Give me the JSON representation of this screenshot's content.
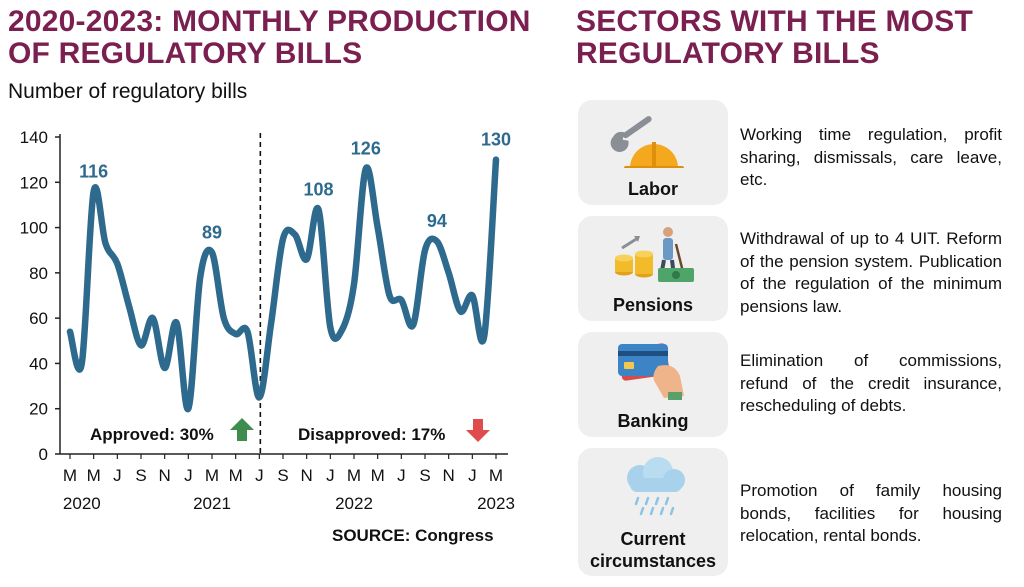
{
  "left_title": "2020-2023: MONTHLY PRODUCTION OF REGULATORY BILLS",
  "right_title": "SECTORS WITH THE MOST REGULATORY BILLS",
  "source": "SOURCE: Congress",
  "colors": {
    "title": "#7a1f4f",
    "line": "#2e6a8e",
    "label": "#2e6a8e",
    "up_arrow": "#3e8c4e",
    "down_arrow": "#e04b4b",
    "card_bg": "#efefef"
  },
  "chart_data": {
    "type": "line",
    "title": "",
    "ylabel": "Number of regulatory bills",
    "xlabel": "",
    "ylim": [
      0,
      140
    ],
    "yticks": [
      0,
      20,
      40,
      60,
      80,
      100,
      120,
      140
    ],
    "month_ticks": [
      "M",
      "M",
      "J",
      "S",
      "N",
      "J",
      "M",
      "M",
      "J",
      "S",
      "N",
      "J",
      "M",
      "M",
      "J",
      "S",
      "N",
      "J",
      "M"
    ],
    "year_labels": [
      "2020",
      "2021",
      "2022",
      "2023"
    ],
    "series": [
      {
        "values": [
          54,
          40,
          116,
          93,
          84,
          65,
          48,
          60,
          38,
          58,
          20,
          78,
          89,
          60,
          53,
          54,
          25,
          58,
          95,
          97,
          86,
          108,
          56,
          55,
          75,
          126,
          100,
          70,
          68,
          57,
          90,
          94,
          80,
          63,
          70,
          52,
          130
        ]
      }
    ],
    "data_labels": [
      {
        "index": 2,
        "text": "116"
      },
      {
        "index": 12,
        "text": "89"
      },
      {
        "index": 21,
        "text": "108"
      },
      {
        "index": 25,
        "text": "126"
      },
      {
        "index": 31,
        "text": "94"
      },
      {
        "index": 36,
        "text": "130"
      }
    ],
    "divider_index": 16,
    "annotations": [
      {
        "text": "Approved: 30%",
        "direction": "up"
      },
      {
        "text": "Disapproved: 17%",
        "direction": "down"
      }
    ]
  },
  "sectors": [
    {
      "label": "Labor",
      "icon": "wrench-hardhat-icon",
      "desc": "Working time regulation, profit sharing, dismissals, care leave, etc."
    },
    {
      "label": "Pensions",
      "icon": "coins-elder-icon",
      "desc": "Withdrawal of up to 4 UIT. Reform of the pension system. Publication of the regulation of the minimum pensions law."
    },
    {
      "label": "Banking",
      "icon": "credit-card-hand-icon",
      "desc": "Elimination of commissions, refund of the credit insurance, rescheduling of debts."
    },
    {
      "label": "Current circumstances",
      "icon": "rain-cloud-icon",
      "desc": "Promotion of family housing bonds, facilities for housing relocation, rental bonds."
    }
  ]
}
